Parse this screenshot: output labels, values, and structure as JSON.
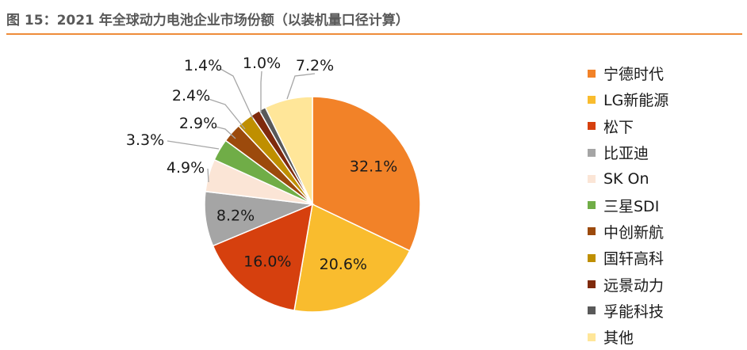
{
  "figure": {
    "title": "图 15：2021 年全球动力电池企业市场份额（以装机量口径计算）"
  },
  "chart_data": {
    "type": "pie",
    "title": "",
    "categories": [
      "宁德时代",
      "LG新能源",
      "松下",
      "比亚迪",
      "SK On",
      "三星SDI",
      "中创新航",
      "国轩高科",
      "远景动力",
      "孚能科技",
      "其他"
    ],
    "values": [
      32.1,
      20.6,
      16.0,
      8.2,
      4.9,
      3.3,
      2.9,
      2.4,
      1.4,
      1.0,
      7.2
    ],
    "data_labels": [
      "32.1%",
      "20.6%",
      "16.0%",
      "8.2%",
      "4.9%",
      "3.3%",
      "2.9%",
      "2.4%",
      "1.4%",
      "1.0%",
      "7.2%"
    ],
    "colors": [
      "#f28228",
      "#f9bc2e",
      "#d6400e",
      "#a5a5a5",
      "#fbe5d6",
      "#70ad47",
      "#9c4a0c",
      "#bf8f00",
      "#7f2a0c",
      "#595959",
      "#ffe699"
    ],
    "start_angle": "12 o'clock",
    "direction": "clockwise",
    "legend_position": "right"
  }
}
